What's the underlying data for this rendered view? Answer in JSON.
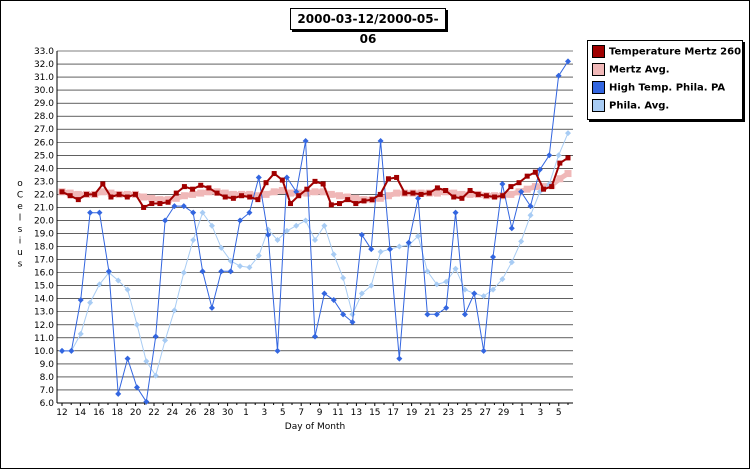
{
  "chart_data": {
    "type": "line",
    "title": "2000-03-12/2000-05-06",
    "xlabel": "Day of Month",
    "ylabel": "o Celsius",
    "ylim": [
      6.0,
      33.0
    ],
    "yticks": [
      "6.0",
      "7.0",
      "8.0",
      "9.0",
      "10.0",
      "11.0",
      "12.0",
      "13.0",
      "14.0",
      "15.0",
      "16.0",
      "17.0",
      "18.0",
      "19.0",
      "20.0",
      "21.0",
      "22.0",
      "23.0",
      "24.0",
      "25.0",
      "26.0",
      "27.0",
      "28.0",
      "29.0",
      "30.0",
      "31.0",
      "32.0",
      "33.0"
    ],
    "xtick_labels": [
      "12",
      "14",
      "16",
      "18",
      "20",
      "22",
      "24",
      "26",
      "28",
      "30",
      "1",
      "3",
      "5",
      "7",
      "9",
      "11",
      "13",
      "15",
      "17",
      "19",
      "21",
      "23",
      "25",
      "27",
      "29",
      "1",
      "3",
      "5"
    ],
    "grid": true,
    "legend_position": "top-right",
    "series": [
      {
        "name": "Temperature Mertz 260",
        "color": "#a00000",
        "marker": "square",
        "values": [
          22.2,
          21.9,
          21.6,
          22.0,
          22.0,
          22.8,
          21.8,
          22.0,
          21.8,
          22.0,
          21.0,
          21.3,
          21.3,
          21.4,
          22.1,
          22.6,
          22.4,
          22.7,
          22.5,
          22.1,
          21.8,
          21.7,
          21.9,
          21.8,
          21.6,
          22.9,
          23.6,
          23.1,
          21.3,
          21.9,
          22.4,
          23.0,
          22.8,
          21.2,
          21.3,
          21.6,
          21.3,
          21.5,
          21.6,
          22.0,
          23.2,
          23.3,
          22.1,
          22.1,
          22.0,
          22.1,
          22.5,
          22.3,
          21.8,
          21.7,
          22.3,
          22.0,
          21.9,
          21.8,
          21.9,
          22.6,
          22.9,
          23.4,
          23.7,
          22.4,
          22.6,
          24.4,
          24.8
        ]
      },
      {
        "name": "Mertz Avg.",
        "color": "#f0b8b8",
        "marker": "square",
        "values": [
          22.2,
          22.1,
          22.0,
          22.0,
          22.0,
          22.2,
          22.1,
          22.0,
          22.0,
          22.0,
          21.8,
          21.7,
          21.6,
          21.6,
          21.7,
          21.9,
          22.0,
          22.1,
          22.2,
          22.2,
          22.1,
          22.0,
          22.0,
          22.0,
          21.9,
          22.0,
          22.2,
          22.3,
          22.1,
          22.1,
          22.1,
          22.2,
          22.2,
          22.0,
          21.9,
          21.8,
          21.7,
          21.6,
          21.6,
          21.7,
          21.9,
          22.1,
          22.1,
          22.1,
          22.1,
          22.1,
          22.1,
          22.2,
          22.1,
          22.0,
          22.0,
          22.0,
          21.9,
          21.9,
          21.9,
          22.0,
          22.2,
          22.4,
          22.6,
          22.6,
          22.7,
          23.2,
          23.6
        ]
      },
      {
        "name": "High Temp. Phila. PA",
        "color": "#3366e0",
        "marker": "diamond",
        "values": [
          10.0,
          10.0,
          13.9,
          20.6,
          20.6,
          16.1,
          6.7,
          9.4,
          7.2,
          6.1,
          11.1,
          20.0,
          21.1,
          21.1,
          20.6,
          16.1,
          13.3,
          16.1,
          16.1,
          20.0,
          20.6,
          23.3,
          18.9,
          10.0,
          23.3,
          22.2,
          26.1,
          11.1,
          14.4,
          13.9,
          12.8,
          12.2,
          18.9,
          17.8,
          26.1,
          17.8,
          9.4,
          18.3,
          21.7,
          12.8,
          12.8,
          13.3,
          20.6,
          12.8,
          14.4,
          10.0,
          17.2,
          22.8,
          19.4,
          22.2,
          21.1,
          23.9,
          25.0,
          31.1,
          32.2
        ]
      },
      {
        "name": "Phila. Avg.",
        "color": "#a8ccf4",
        "marker": "diamond",
        "values": [
          10.0,
          10.0,
          11.3,
          13.7,
          15.1,
          16.0,
          15.4,
          14.7,
          12.0,
          9.2,
          8.1,
          10.8,
          13.1,
          16.0,
          18.5,
          20.6,
          19.6,
          17.9,
          16.9,
          16.5,
          16.4,
          17.3,
          19.3,
          18.5,
          19.2,
          19.6,
          20.0,
          18.5,
          19.6,
          17.4,
          15.6,
          12.8,
          14.4,
          15.0,
          17.6,
          17.8,
          18.0,
          18.1,
          18.8,
          16.1,
          15.1,
          15.3,
          16.3,
          14.7,
          14.4,
          14.2,
          14.7,
          15.5,
          16.8,
          18.4,
          20.4,
          22.2,
          22.8,
          25.0,
          26.7
        ]
      }
    ]
  }
}
